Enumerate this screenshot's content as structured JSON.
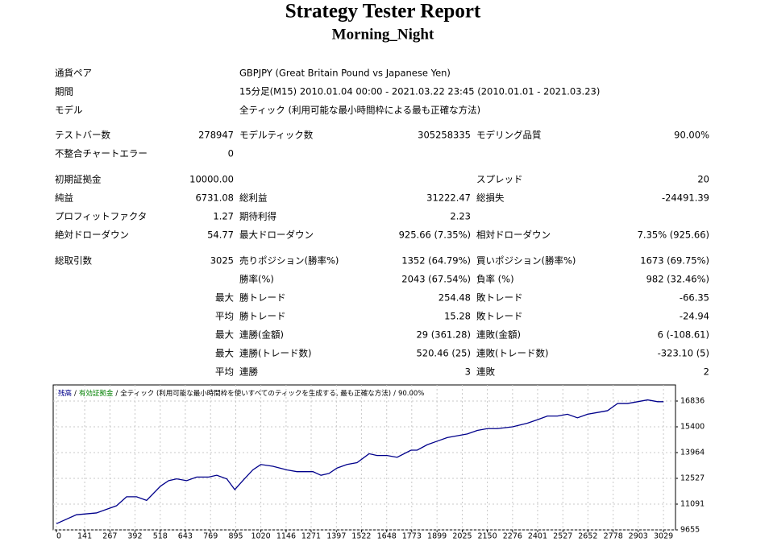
{
  "header": {
    "title": "Strategy Tester Report",
    "subtitle": "Morning_Night"
  },
  "table": {
    "rows": [
      [
        "通貨ペア",
        null,
        "GBPJPY (Great Britain Pound vs Japanese Yen)",
        null,
        null,
        null
      ],
      [
        "期間",
        null,
        "15分足(M15) 2010.01.04 00:00 - 2021.03.22 23:45 (2010.01.01 - 2021.03.23)",
        null,
        null,
        null
      ],
      [
        "モデル",
        null,
        "全ティック (利用可能な最小時間枠による最も正確な方法)",
        null,
        null,
        null
      ],
      [
        "テストバー数",
        "278947",
        "モデルティック数",
        "305258335",
        "モデリング品質",
        "90.00%"
      ],
      [
        "不整合チャートエラー",
        "0",
        null,
        null,
        null,
        null
      ],
      [
        "初期証拠金",
        "10000.00",
        null,
        null,
        "スプレッド",
        "20"
      ],
      [
        "純益",
        "6731.08",
        "総利益",
        "31222.47",
        "総損失",
        "-24491.39"
      ],
      [
        "プロフィットファクタ",
        "1.27",
        "期待利得",
        "2.23",
        null,
        null
      ],
      [
        "絶対ドローダウン",
        "54.77",
        "最大ドローダウン",
        "925.66 (7.35%)",
        "相対ドローダウン",
        "7.35% (925.66)"
      ],
      [
        "総取引数",
        "3025",
        "売りポジション(勝率%)",
        "1352 (64.79%)",
        "買いポジション(勝率%)",
        "1673 (69.75%)"
      ],
      [
        null,
        null,
        "勝率(%)",
        "2043 (67.54%)",
        "負率 (%)",
        "982 (32.46%)"
      ],
      [
        null,
        "最大",
        "勝トレード",
        "254.48",
        "敗トレード",
        "-66.35"
      ],
      [
        null,
        "平均",
        "勝トレード",
        "15.28",
        "敗トレード",
        "-24.94"
      ],
      [
        null,
        "最大",
        "連勝(金額)",
        "29 (361.28)",
        "連敗(金額)",
        "6 (-108.61)"
      ],
      [
        null,
        "最大",
        "連勝(トレード数)",
        "520.46 (25)",
        "連敗(トレード数)",
        "-323.10 (5)"
      ],
      [
        null,
        "平均",
        "連勝",
        "3",
        "連敗",
        "2"
      ]
    ]
  },
  "chart_data": {
    "type": "line",
    "x": [
      0,
      100,
      200,
      300,
      350,
      400,
      450,
      520,
      560,
      600,
      650,
      700,
      760,
      800,
      850,
      890,
      930,
      980,
      1020,
      1080,
      1150,
      1200,
      1280,
      1320,
      1360,
      1400,
      1450,
      1500,
      1560,
      1600,
      1650,
      1700,
      1770,
      1800,
      1850,
      1900,
      1950,
      2000,
      2050,
      2100,
      2150,
      2200,
      2276,
      2350,
      2401,
      2450,
      2500,
      2550,
      2600,
      2650,
      2700,
      2750,
      2800,
      2850,
      2900,
      2950,
      3000,
      3029
    ],
    "series": [
      {
        "name": "残高",
        "color": "#00008b",
        "values": [
          10000,
          10500,
          10600,
          11000,
          11500,
          11500,
          11300,
          12100,
          12400,
          12500,
          12400,
          12600,
          12600,
          12700,
          12500,
          11900,
          12400,
          13000,
          13300,
          13200,
          13000,
          12900,
          12900,
          12700,
          12800,
          13100,
          13300,
          13400,
          13900,
          13800,
          13800,
          13700,
          14100,
          14100,
          14400,
          14600,
          14800,
          14900,
          15000,
          15200,
          15300,
          15300,
          15400,
          15600,
          15800,
          16000,
          16000,
          16100,
          15900,
          16100,
          16200,
          16300,
          16700,
          16700,
          16800,
          16900,
          16800,
          16800
        ]
      }
    ],
    "legend_extra": [
      {
        "text": "有効証拠金",
        "color": "#008000"
      },
      {
        "text": "全ティック (利用可能な最小時間枠を使いすべてのティックを生成する, 最も正確な方法)",
        "color": "#000000"
      },
      {
        "text": "90.00%",
        "color": "#000000"
      }
    ],
    "legend_separator": "/",
    "xlim": [
      0,
      3089
    ],
    "ylim": [
      9655,
      17734
    ],
    "xticks": [
      0,
      141,
      267,
      392,
      518,
      643,
      769,
      895,
      1020,
      1146,
      1271,
      1397,
      1522,
      1648,
      1773,
      1899,
      2025,
      2150,
      2276,
      2401,
      2527,
      2652,
      2778,
      2903,
      3029
    ],
    "yticks": [
      9655,
      11091,
      12527,
      13964,
      15400,
      16836
    ],
    "grid": true
  }
}
